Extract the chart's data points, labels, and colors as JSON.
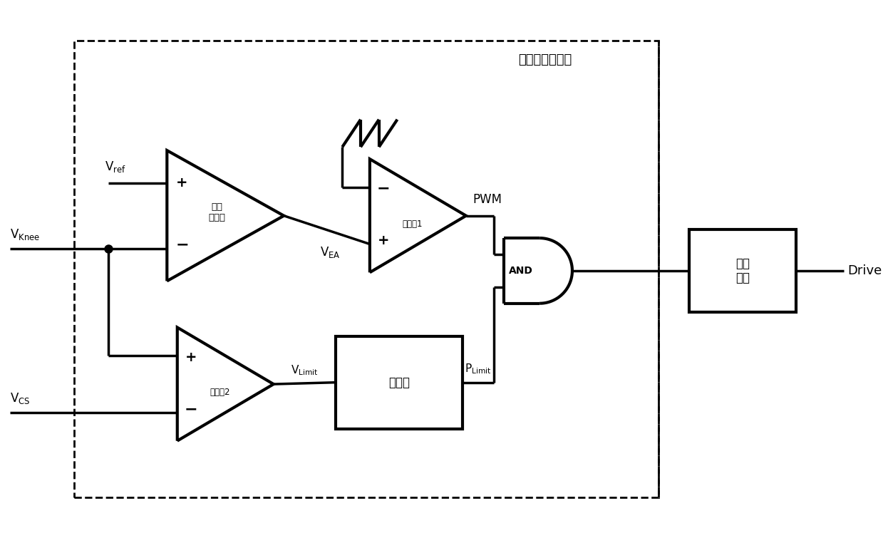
{
  "title": "自适应启动电路",
  "bg_color": "#ffffff",
  "line_color": "#000000",
  "lw": 2.5,
  "lw_thick": 3.0,
  "fig_width": 12.39,
  "fig_height": 7.55,
  "labels": {
    "Vref": "V$_\\mathregular{ref}$",
    "VKnee": "V$_\\mathregular{Knee}$",
    "VCS": "V$_\\mathregular{CS}$",
    "VEA": "V$_\\mathregular{EA}$",
    "PWM": "PWM",
    "VLimit": "V$_\\mathregular{Limit}$",
    "PLimit": "P$_\\mathregular{Limit}$",
    "Drive": "Drive",
    "EA_label": "误差\n放大器",
    "Comp1_label": "比较器1",
    "Comp2_label": "比较器2",
    "AND_label": "AND",
    "Latch_label": "锁存器",
    "Driver_label": "驱动\n电路"
  }
}
